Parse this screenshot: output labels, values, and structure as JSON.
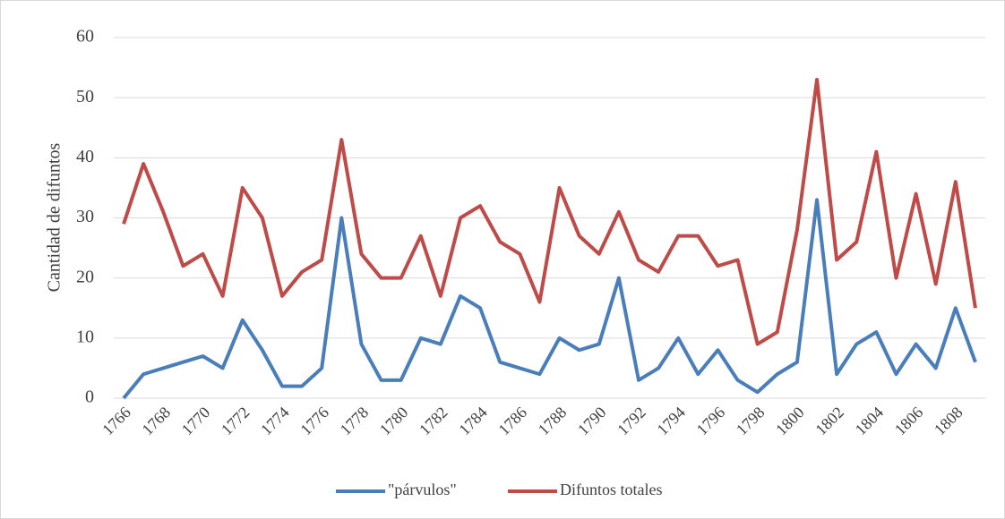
{
  "chart_data": {
    "type": "line",
    "y_label": "Cantidad de difuntos",
    "categories": [
      "1766",
      null,
      "1768",
      null,
      "1770",
      null,
      "1772",
      null,
      "1774",
      null,
      "1776",
      null,
      "1778",
      null,
      "1780",
      null,
      "1782",
      null,
      "1784",
      null,
      "1786",
      null,
      "1788",
      null,
      "1790",
      null,
      "1792",
      null,
      "1794",
      null,
      "1796",
      null,
      "1798",
      null,
      "1800",
      null,
      "1802",
      null,
      "1804",
      null,
      "1806",
      null,
      "1808",
      null
    ],
    "series": [
      {
        "name": "\"párvulos\"",
        "color": "#4a7ebb",
        "values": [
          0,
          4,
          5,
          6,
          7,
          5,
          13,
          8,
          2,
          2,
          5,
          30,
          9,
          3,
          3,
          10,
          9,
          17,
          15,
          6,
          5,
          4,
          10,
          8,
          9,
          20,
          3,
          5,
          10,
          4,
          8,
          3,
          1,
          4,
          6,
          33,
          4,
          9,
          11,
          4,
          9,
          5,
          15,
          6
        ]
      },
      {
        "name": "Difuntos totales",
        "color": "#be4b48",
        "values": [
          29,
          39,
          31,
          22,
          24,
          17,
          35,
          30,
          17,
          21,
          23,
          43,
          24,
          20,
          20,
          27,
          17,
          30,
          32,
          26,
          24,
          16,
          35,
          27,
          24,
          31,
          23,
          21,
          27,
          27,
          22,
          23,
          9,
          11,
          28,
          53,
          23,
          26,
          41,
          20,
          34,
          19,
          36,
          15
        ]
      }
    ],
    "ylim": [
      0,
      60
    ],
    "yticks": [
      0,
      10,
      20,
      30,
      40,
      50,
      60
    ],
    "grid": true,
    "legend": "bottom"
  }
}
